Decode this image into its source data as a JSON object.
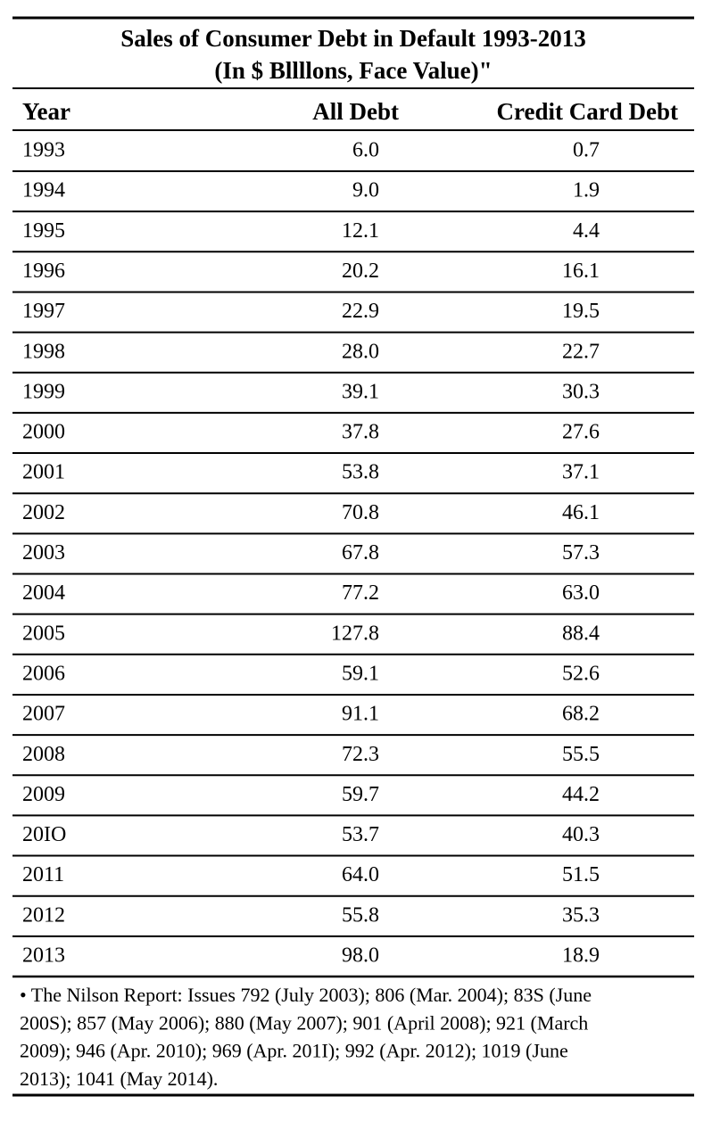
{
  "header": {
    "title": "Sales of Consumer Debt in Default 1993-2013",
    "subtitle": "(In $ Bllllons, Face Value)\""
  },
  "table": {
    "columns": [
      "Year",
      "All Debt",
      "Credit Card Debt"
    ],
    "rows": [
      [
        "1993",
        "6.0",
        "0.7"
      ],
      [
        "1994",
        "9.0",
        "1.9"
      ],
      [
        "1995",
        "12.1",
        "4.4"
      ],
      [
        "1996",
        "20.2",
        "16.1"
      ],
      [
        "1997",
        "22.9",
        "19.5"
      ],
      [
        "1998",
        "28.0",
        "22.7"
      ],
      [
        "1999",
        "39.1",
        "30.3"
      ],
      [
        "2000",
        "37.8",
        "27.6"
      ],
      [
        "2001",
        "53.8",
        "37.1"
      ],
      [
        "2002",
        "70.8",
        "46.1"
      ],
      [
        "2003",
        "67.8",
        "57.3"
      ],
      [
        "2004",
        "77.2",
        "63.0"
      ],
      [
        "2005",
        "127.8",
        "88.4"
      ],
      [
        "2006",
        "59.1",
        "52.6"
      ],
      [
        "2007",
        "91.1",
        "68.2"
      ],
      [
        "2008",
        "72.3",
        "55.5"
      ],
      [
        "2009",
        "59.7",
        "44.2"
      ],
      [
        "20IO",
        "53.7",
        "40.3"
      ],
      [
        "2011",
        "64.0",
        "51.5"
      ],
      [
        "2012",
        "55.8",
        "35.3"
      ],
      [
        "2013",
        "98.0",
        "18.9"
      ]
    ]
  },
  "footnote": {
    "lines": [
      "• The Nilson Report: Issues 792 (July 2003); 806 (Mar. 2004); 83S (June",
      "200S); 857 (May 2006); 880 (May 2007); 901 (April 2008); 921 (March",
      "2009); 946 (Apr. 2010); 969 (Apr. 201I); 992 (Apr. 2012); 1019 (June",
      "2013); 1041 (May 2014)."
    ]
  }
}
